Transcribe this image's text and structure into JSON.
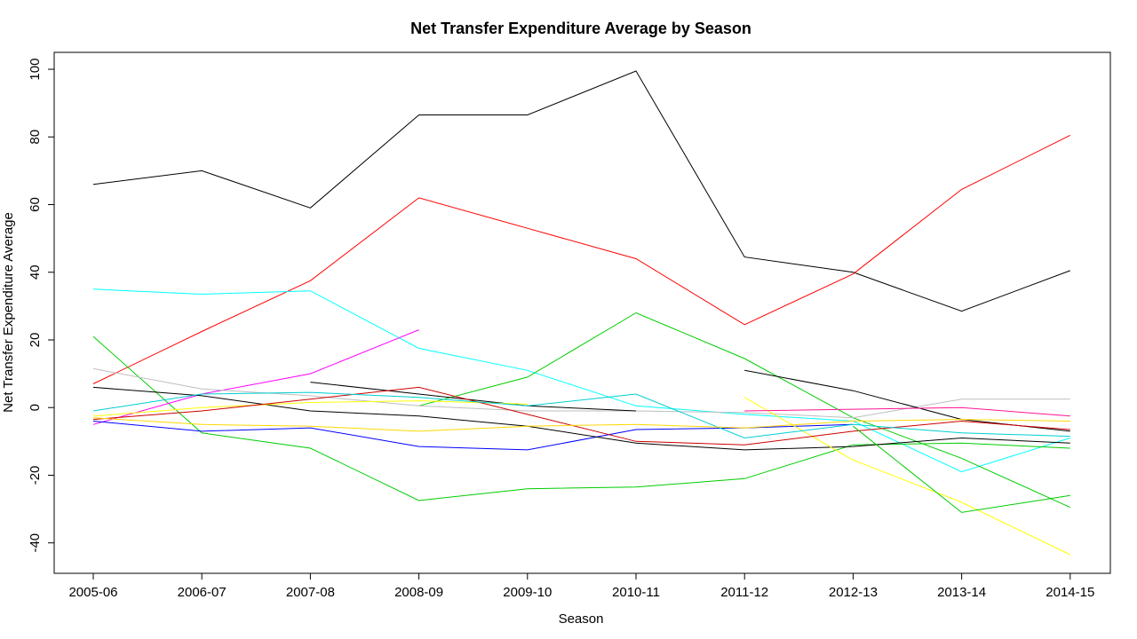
{
  "chart_data": {
    "type": "line",
    "title": "Net Transfer Expenditure Average by Season",
    "xlabel": "Season",
    "ylabel": "Net Transfer Expenditure Average",
    "categories": [
      "2005-06",
      "2006-07",
      "2007-08",
      "2008-09",
      "2009-10",
      "2010-11",
      "2011-12",
      "2012-13",
      "2013-14",
      "2014-15"
    ],
    "yticks": [
      -40,
      -20,
      0,
      20,
      40,
      60,
      80,
      100
    ],
    "ylim": [
      -49,
      105
    ],
    "grid": false,
    "legend": "none",
    "series": [
      {
        "color": "#000000",
        "values": [
          66,
          70,
          59,
          86.5,
          86.5,
          99.5,
          44.5,
          40,
          28.5,
          40.5
        ]
      },
      {
        "color": "#FF0000",
        "values": [
          7,
          22.5,
          37.5,
          62,
          53,
          44,
          24.5,
          39.5,
          64.5,
          80.5
        ]
      },
      {
        "color": "#00FFFF",
        "values": [
          35,
          33.5,
          34.5,
          17.5,
          11,
          0.5,
          -2,
          -4,
          -19,
          -9
        ]
      },
      {
        "color": "#00CD00",
        "values": [
          21,
          -7.5,
          -12,
          -27.5,
          -24,
          -23.5,
          -21,
          -11,
          -10.5,
          -12
        ]
      },
      {
        "color": "#00CD00",
        "values": [
          null,
          null,
          null,
          0.5,
          9,
          28,
          14.5,
          -3,
          -15,
          -29.5
        ]
      },
      {
        "color": "#FF00FF",
        "values": [
          -5,
          4,
          10,
          23,
          null,
          null,
          null,
          null,
          null,
          null
        ]
      },
      {
        "color": "#BEBEBE",
        "values": [
          11.5,
          5.5,
          3.5,
          0.5,
          -1,
          -1,
          -1.5,
          -3,
          2.5,
          2.5
        ]
      },
      {
        "color": "#0000FF",
        "values": [
          -4,
          -7,
          -6,
          -11.5,
          -12.5,
          -6.5,
          -6,
          -5,
          null,
          null
        ]
      },
      {
        "color": "#000000",
        "values": [
          6,
          3.5,
          -1,
          -2.5,
          -5.5,
          -10.5,
          -12.5,
          -11.5,
          -9,
          -10.5
        ]
      },
      {
        "color": "#000000",
        "values": [
          null,
          null,
          7.5,
          4,
          0.5,
          -1,
          null,
          null,
          null,
          null
        ]
      },
      {
        "color": "#000000",
        "values": [
          null,
          null,
          null,
          null,
          null,
          null,
          11,
          5,
          -3.5,
          -7
        ]
      },
      {
        "color": "#FFFF00",
        "values": [
          -2.5,
          0,
          1.5,
          2,
          1,
          null,
          null,
          null,
          null,
          null
        ]
      },
      {
        "color": "#FFFF00",
        "values": [
          null,
          null,
          null,
          null,
          null,
          null,
          3,
          -15.5,
          -28,
          -43.5
        ]
      },
      {
        "color": "#CD0000",
        "values": [
          -3.5,
          -1,
          2.5,
          6,
          -2,
          -10,
          -11,
          -7,
          -4,
          -6.5
        ]
      },
      {
        "color": "#00CED1",
        "values": [
          -1,
          4,
          4.5,
          3,
          0.5,
          4,
          -9,
          -5,
          -7.5,
          -8.5
        ]
      },
      {
        "color": "#00CD00",
        "values": [
          null,
          null,
          null,
          null,
          null,
          null,
          null,
          -5.5,
          -31,
          -26
        ]
      },
      {
        "color": "#FF1493",
        "values": [
          null,
          null,
          null,
          null,
          null,
          null,
          -1,
          -0.5,
          0,
          -2.5
        ]
      },
      {
        "color": "#FFD700",
        "values": [
          -3,
          -5,
          -5.5,
          -7,
          -5.5,
          -5,
          -6,
          -4,
          -3.5,
          -4
        ]
      }
    ]
  }
}
